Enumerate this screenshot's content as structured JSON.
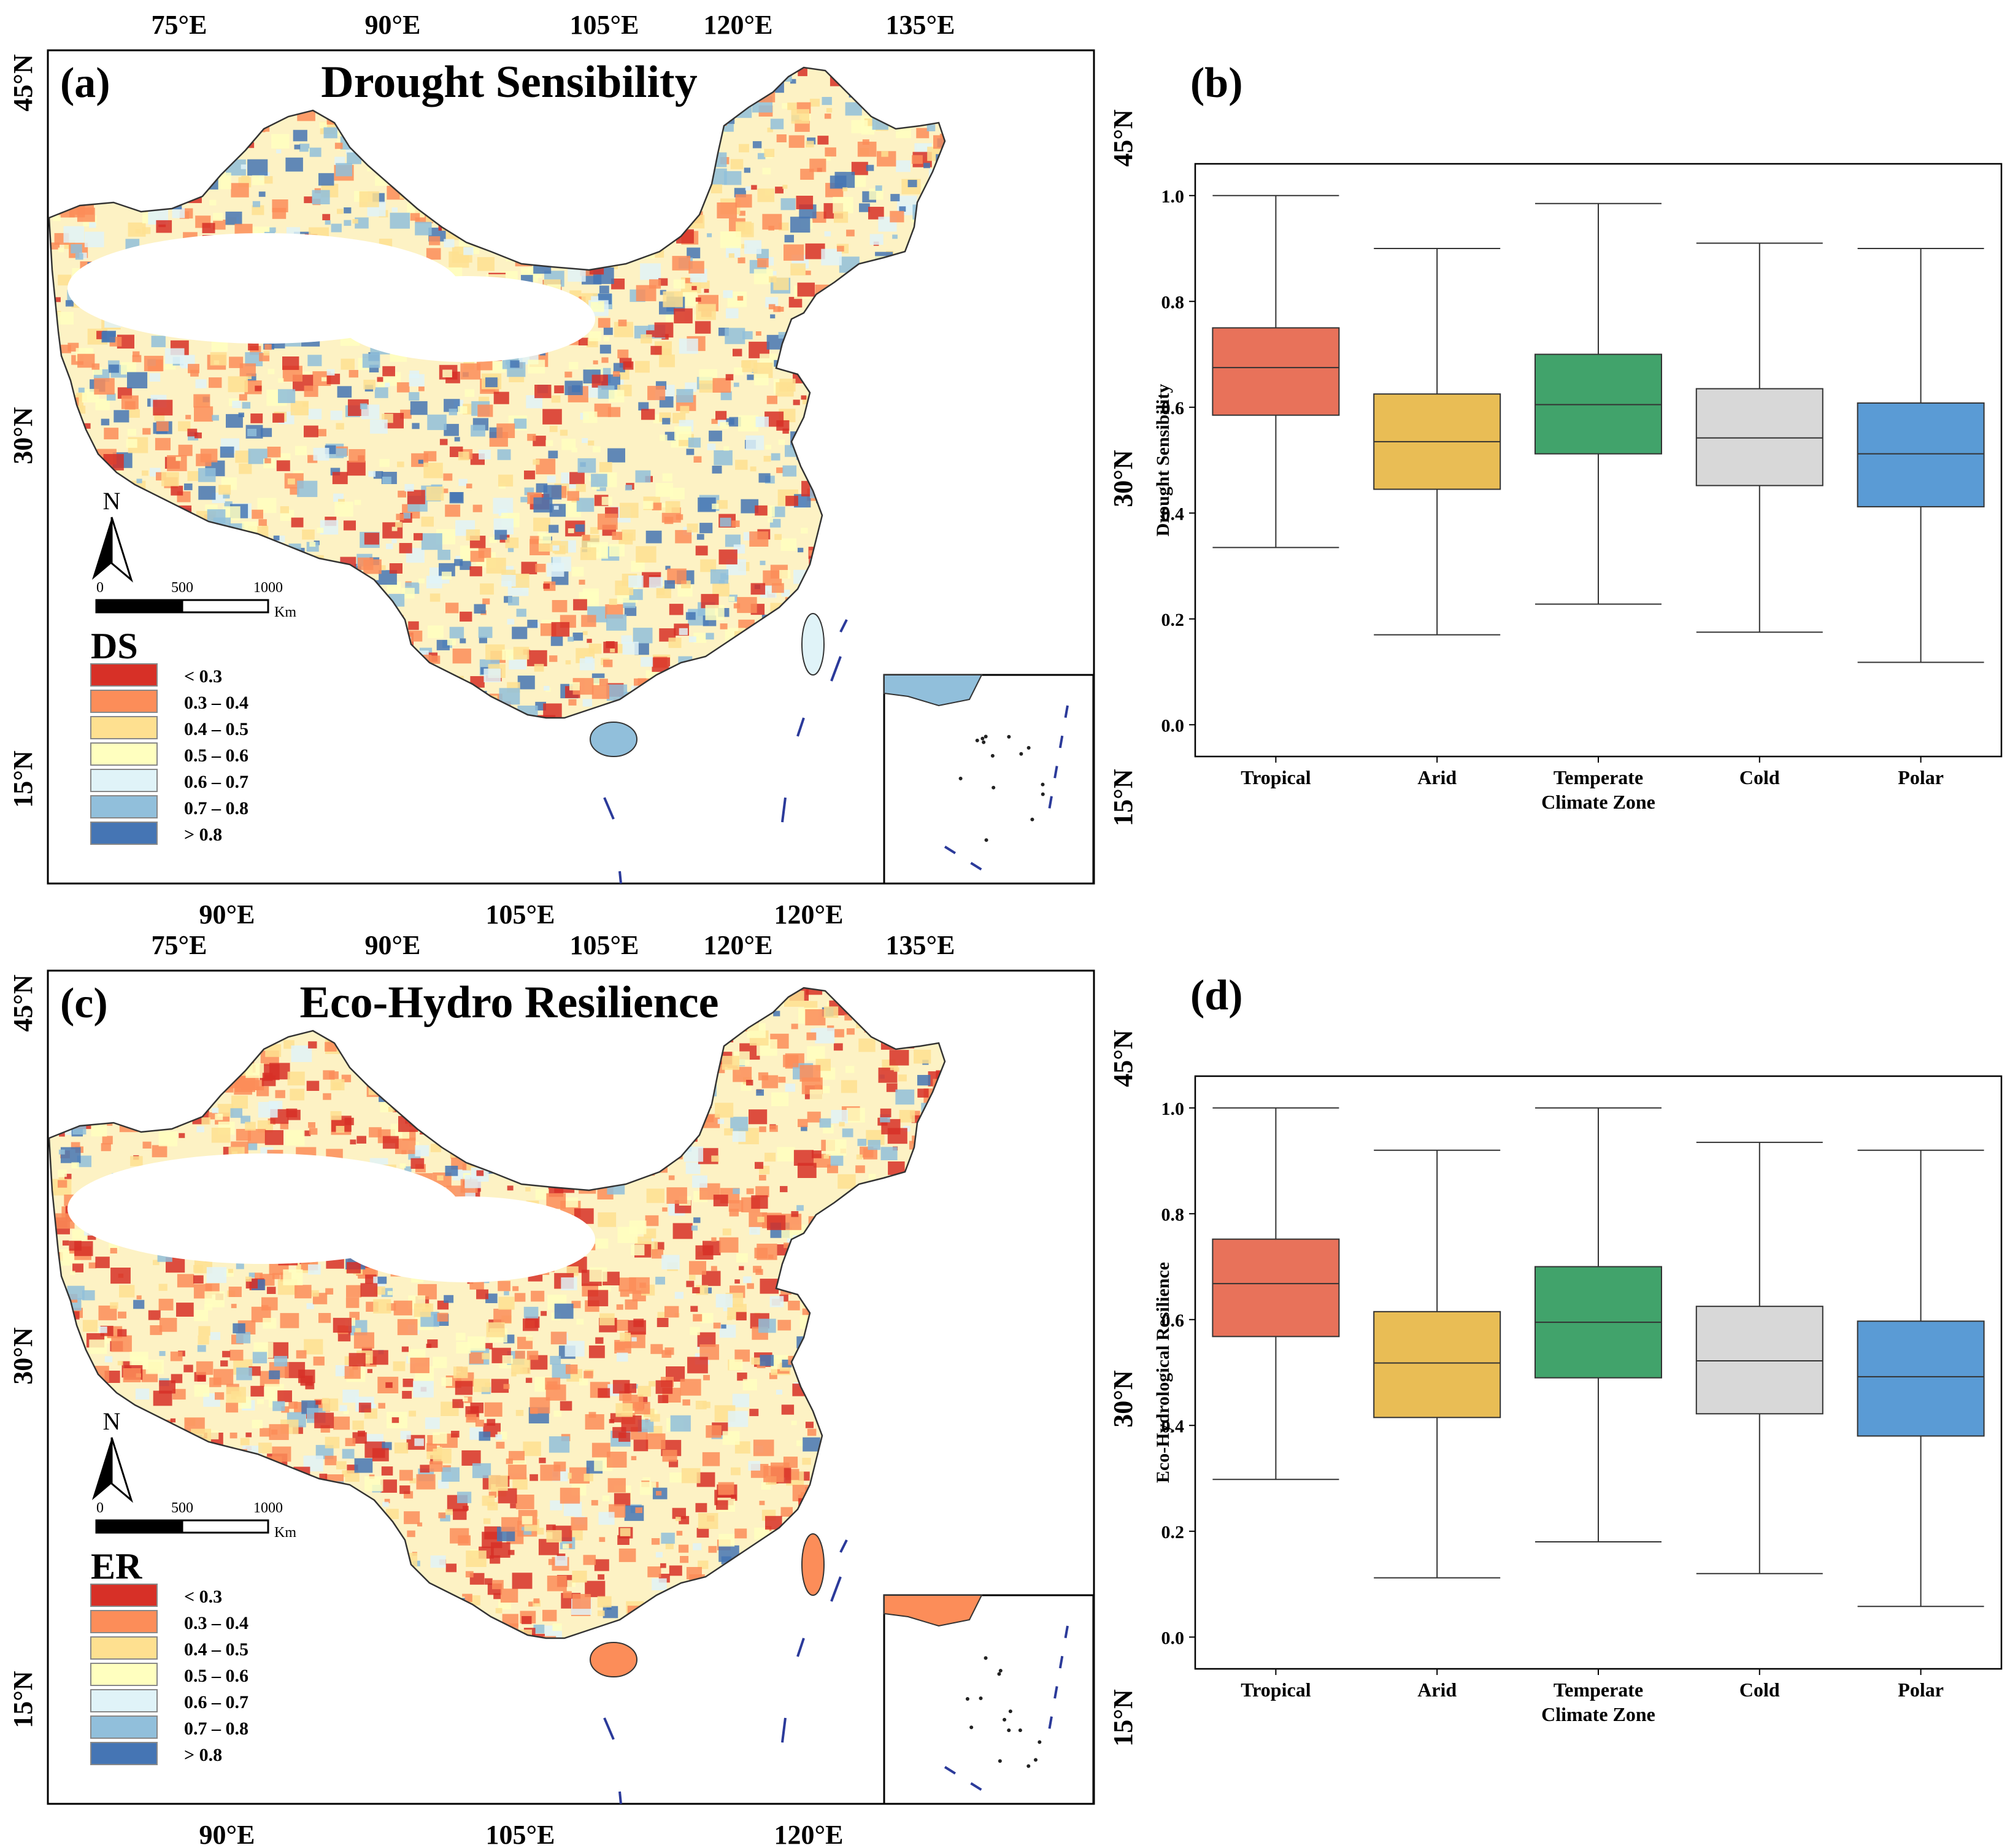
{
  "colors": {
    "tropical": "#e8725a",
    "arid": "#e9bd55",
    "temperate": "#41a36b",
    "cold": "#d8d8d8",
    "polar": "#5a9bd5",
    "ds_lt03": "#d73027",
    "ds_03_04": "#fc8d59",
    "ds_04_05": "#fee090",
    "ds_05_06": "#ffffbf",
    "ds_06_07": "#e0f3f8",
    "ds_07_08": "#91bfdb",
    "ds_gt08": "#4575b4",
    "china_fill_light": "#fdf2c4",
    "boundary": "#333333",
    "dash_line": "#2b3a9a"
  },
  "panels": {
    "a": {
      "label": "(a)",
      "title": "Drought Sensibility",
      "top_ticks": [
        "75°E",
        "90°E",
        "105°E",
        "120°E",
        "135°E"
      ],
      "bottom_ticks": [
        "90°E",
        "105°E",
        "120°E"
      ],
      "left_ticks": [
        "45°N",
        "30°N",
        "15°N"
      ],
      "right_ticks": [
        "45°N",
        "30°N",
        "15°N"
      ],
      "legend_title": "DS",
      "legend": [
        "< 0.3",
        "0.3 – 0.4",
        "0.4 – 0.5",
        "0.5 – 0.6",
        "0.6 – 0.7",
        "0.7 – 0.8",
        "> 0.8"
      ],
      "north": "N",
      "scale_labels": [
        "0",
        "500",
        "1000"
      ],
      "scale_unit": "Km"
    },
    "c": {
      "label": "(c)",
      "title": "Eco-Hydro Resilience",
      "top_ticks": [
        "75°E",
        "90°E",
        "105°E",
        "120°E",
        "135°E"
      ],
      "bottom_ticks": [
        "90°E",
        "105°E",
        "120°E"
      ],
      "left_ticks": [
        "45°N",
        "30°N",
        "15°N"
      ],
      "right_ticks": [
        "45°N",
        "30°N",
        "15°N"
      ],
      "legend_title": "ER",
      "legend": [
        "< 0.3",
        "0.3 – 0.4",
        "0.4 – 0.5",
        "0.5 – 0.6",
        "0.6 – 0.7",
        "0.7 – 0.8",
        "> 0.8"
      ],
      "north": "N",
      "scale_labels": [
        "0",
        "500",
        "1000"
      ],
      "scale_unit": "Km"
    },
    "b": {
      "label": "(b)"
    },
    "d": {
      "label": "(d)"
    }
  },
  "chart_data": [
    {
      "type": "box",
      "panel": "b",
      "xlabel": "Climate Zone",
      "ylabel": "Drought Sensibility",
      "ylim": [
        -0.06,
        1.06
      ],
      "yticks": [
        "0.0",
        "0.2",
        "0.4",
        "0.6",
        "0.8",
        "1.0"
      ],
      "categories": [
        "Tropical",
        "Arid",
        "Temperate",
        "Cold",
        "Polar"
      ],
      "series": [
        {
          "name": "Tropical",
          "min": 0.335,
          "q1": 0.585,
          "median": 0.675,
          "q3": 0.75,
          "max": 1.0
        },
        {
          "name": "Arid",
          "min": 0.17,
          "q1": 0.445,
          "median": 0.535,
          "q3": 0.625,
          "max": 0.9
        },
        {
          "name": "Temperate",
          "min": 0.228,
          "q1": 0.512,
          "median": 0.605,
          "q3": 0.7,
          "max": 0.985
        },
        {
          "name": "Cold",
          "min": 0.175,
          "q1": 0.452,
          "median": 0.542,
          "q3": 0.635,
          "max": 0.91
        },
        {
          "name": "Polar",
          "min": 0.118,
          "q1": 0.412,
          "median": 0.512,
          "q3": 0.608,
          "max": 0.9
        }
      ]
    },
    {
      "type": "box",
      "panel": "d",
      "xlabel": "Climate Zone",
      "ylabel": "Eco-Hydrological Resilience",
      "ylim": [
        -0.06,
        1.06
      ],
      "yticks": [
        "0.0",
        "0.2",
        "0.4",
        "0.6",
        "0.8",
        "1.0"
      ],
      "categories": [
        "Tropical",
        "Arid",
        "Temperate",
        "Cold",
        "Polar"
      ],
      "series": [
        {
          "name": "Tropical",
          "min": 0.298,
          "q1": 0.568,
          "median": 0.668,
          "q3": 0.752,
          "max": 1.0
        },
        {
          "name": "Arid",
          "min": 0.112,
          "q1": 0.415,
          "median": 0.518,
          "q3": 0.615,
          "max": 0.92
        },
        {
          "name": "Temperate",
          "min": 0.18,
          "q1": 0.49,
          "median": 0.595,
          "q3": 0.7,
          "max": 1.0
        },
        {
          "name": "Cold",
          "min": 0.12,
          "q1": 0.422,
          "median": 0.522,
          "q3": 0.625,
          "max": 0.935
        },
        {
          "name": "Polar",
          "min": 0.058,
          "q1": 0.38,
          "median": 0.492,
          "q3": 0.597,
          "max": 0.92
        }
      ]
    }
  ]
}
